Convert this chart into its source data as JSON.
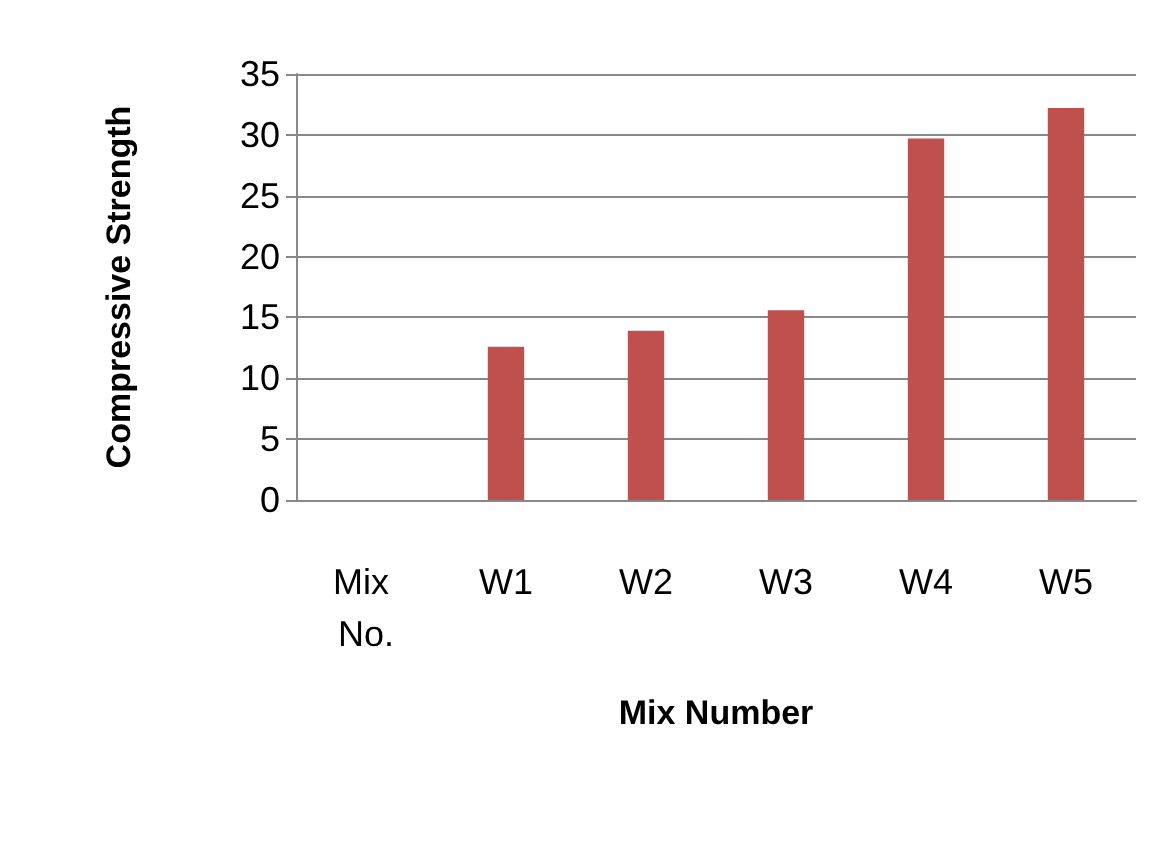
{
  "chart_data": {
    "type": "bar",
    "xlabel": "Mix Number",
    "ylabel": "Compressive Strength",
    "categories": [
      "Mix No.",
      "W1",
      "W2",
      "W3",
      "W4",
      "W5"
    ],
    "values": [
      null,
      12.6,
      13.9,
      15.6,
      29.7,
      32.2
    ],
    "color": "#c0504d",
    "ylim": [
      0,
      35
    ],
    "yticks": [
      0,
      5,
      10,
      15,
      20,
      25,
      30,
      35
    ],
    "grid": "y"
  }
}
